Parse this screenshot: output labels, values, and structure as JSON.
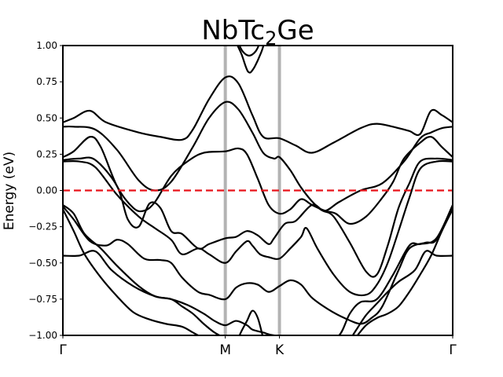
{
  "chart_data": {
    "type": "line",
    "title": {
      "main": "NbTc",
      "sub": "2",
      "tail": "Ge"
    },
    "xlabel": "",
    "ylabel": "Energy (eV)",
    "xlim": [
      0,
      3.6
    ],
    "ylim": [
      -1.0,
      1.0
    ],
    "yticks": [
      1.0,
      0.75,
      0.5,
      0.25,
      0.0,
      -0.25,
      -0.5,
      -0.75,
      -1.0
    ],
    "ytick_labels": [
      "1.00",
      "0.75",
      "0.50",
      "0.25",
      "0.00",
      "−0.25",
      "−0.50",
      "−0.75",
      "−1.00"
    ],
    "high_symmetry_points": [
      {
        "label": "Γ",
        "x": 0.0
      },
      {
        "label": "M",
        "x": 1.5
      },
      {
        "label": "K",
        "x": 2.0
      },
      {
        "label": "Γ",
        "x": 3.6
      }
    ],
    "fermi_level": 0.0,
    "fermi_color": "#e8141b",
    "band_color": "#000000",
    "divider_color": "#b3b3b3",
    "grid": false,
    "series": [
      {
        "values": [
          [
            0,
            0.47
          ],
          [
            0.1,
            0.5
          ],
          [
            0.25,
            0.55
          ],
          [
            0.4,
            0.47
          ],
          [
            0.7,
            0.4
          ],
          [
            0.9,
            0.37
          ],
          [
            1.1,
            0.35
          ],
          [
            1.2,
            0.42
          ],
          [
            1.35,
            0.63
          ],
          [
            1.5,
            0.78
          ],
          [
            1.62,
            0.74
          ],
          [
            1.75,
            0.52
          ],
          [
            1.85,
            0.37
          ],
          [
            2.0,
            0.36
          ],
          [
            2.15,
            0.31
          ],
          [
            2.3,
            0.26
          ],
          [
            2.5,
            0.33
          ],
          [
            2.75,
            0.43
          ],
          [
            2.9,
            0.46
          ],
          [
            3.1,
            0.43
          ],
          [
            3.2,
            0.41
          ],
          [
            3.3,
            0.39
          ],
          [
            3.4,
            0.55
          ],
          [
            3.5,
            0.52
          ],
          [
            3.6,
            0.47
          ]
        ]
      },
      {
        "values": [
          [
            0,
            0.44
          ],
          [
            0.1,
            0.44
          ],
          [
            0.3,
            0.42
          ],
          [
            0.5,
            0.28
          ],
          [
            0.7,
            0.07
          ],
          [
            0.85,
            0.0
          ],
          [
            1.0,
            0.06
          ],
          [
            1.2,
            0.3
          ],
          [
            1.35,
            0.5
          ],
          [
            1.5,
            0.61
          ],
          [
            1.62,
            0.56
          ],
          [
            1.75,
            0.4
          ],
          [
            1.85,
            0.26
          ],
          [
            1.95,
            0.22
          ],
          [
            2.0,
            0.23
          ],
          [
            2.1,
            0.14
          ],
          [
            2.2,
            0.02
          ],
          [
            2.32,
            -0.09
          ],
          [
            2.42,
            -0.14
          ],
          [
            2.55,
            -0.08
          ],
          [
            2.75,
            0.0
          ],
          [
            2.95,
            0.05
          ],
          [
            3.15,
            0.2
          ],
          [
            3.3,
            0.36
          ],
          [
            3.4,
            0.4
          ],
          [
            3.5,
            0.43
          ],
          [
            3.6,
            0.44
          ]
        ]
      },
      {
        "values": [
          [
            0,
            0.23
          ],
          [
            0.1,
            0.27
          ],
          [
            0.25,
            0.37
          ],
          [
            0.35,
            0.3
          ],
          [
            0.5,
            0.03
          ],
          [
            0.65,
            -0.12
          ],
          [
            0.75,
            -0.14
          ],
          [
            0.85,
            -0.08
          ],
          [
            1.0,
            0.1
          ],
          [
            1.15,
            0.2
          ],
          [
            1.3,
            0.26
          ],
          [
            1.5,
            0.27
          ],
          [
            1.62,
            0.29
          ],
          [
            1.7,
            0.25
          ],
          [
            1.8,
            0.08
          ],
          [
            1.9,
            -0.1
          ],
          [
            2.0,
            -0.16
          ],
          [
            2.1,
            -0.13
          ],
          [
            2.2,
            -0.06
          ],
          [
            2.3,
            -0.1
          ],
          [
            2.42,
            -0.14
          ],
          [
            2.52,
            -0.16
          ],
          [
            2.65,
            -0.23
          ],
          [
            2.8,
            -0.18
          ],
          [
            2.95,
            -0.05
          ],
          [
            3.05,
            0.06
          ],
          [
            3.15,
            0.22
          ],
          [
            3.3,
            0.33
          ],
          [
            3.4,
            0.37
          ],
          [
            3.5,
            0.3
          ],
          [
            3.6,
            0.23
          ]
        ]
      },
      {
        "values": [
          [
            0,
            0.21
          ],
          [
            0.15,
            0.22
          ],
          [
            0.3,
            0.21
          ],
          [
            0.5,
            0.03
          ],
          [
            0.6,
            -0.2
          ],
          [
            0.7,
            -0.25
          ],
          [
            0.8,
            -0.09
          ],
          [
            0.9,
            -0.12
          ],
          [
            1.0,
            -0.28
          ],
          [
            1.1,
            -0.3
          ],
          [
            1.25,
            -0.4
          ],
          [
            1.35,
            -0.37
          ],
          [
            1.5,
            -0.33
          ],
          [
            1.6,
            -0.32
          ],
          [
            1.7,
            -0.28
          ],
          [
            1.8,
            -0.31
          ],
          [
            1.9,
            -0.37
          ],
          [
            1.95,
            -0.33
          ],
          [
            2.05,
            -0.23
          ],
          [
            2.15,
            -0.21
          ],
          [
            2.3,
            -0.1
          ],
          [
            2.4,
            -0.14
          ],
          [
            2.5,
            -0.18
          ],
          [
            2.65,
            -0.36
          ],
          [
            2.8,
            -0.56
          ],
          [
            2.9,
            -0.58
          ],
          [
            3.0,
            -0.38
          ],
          [
            3.1,
            -0.12
          ],
          [
            3.2,
            0.05
          ],
          [
            3.3,
            0.2
          ],
          [
            3.45,
            0.22
          ],
          [
            3.6,
            0.21
          ]
        ]
      },
      {
        "values": [
          [
            0,
            0.2
          ],
          [
            0.15,
            0.2
          ],
          [
            0.3,
            0.16
          ],
          [
            0.5,
            -0.03
          ],
          [
            0.7,
            -0.18
          ],
          [
            0.85,
            -0.26
          ],
          [
            1.0,
            -0.34
          ],
          [
            1.1,
            -0.44
          ],
          [
            1.25,
            -0.4
          ],
          [
            1.35,
            -0.44
          ],
          [
            1.5,
            -0.5
          ],
          [
            1.6,
            -0.42
          ],
          [
            1.7,
            -0.35
          ],
          [
            1.75,
            -0.38
          ],
          [
            1.82,
            -0.44
          ],
          [
            1.9,
            -0.46
          ],
          [
            2.0,
            -0.47
          ],
          [
            2.1,
            -0.4
          ],
          [
            2.2,
            -0.32
          ],
          [
            2.25,
            -0.26
          ],
          [
            2.35,
            -0.4
          ],
          [
            2.5,
            -0.58
          ],
          [
            2.65,
            -0.7
          ],
          [
            2.8,
            -0.72
          ],
          [
            2.9,
            -0.65
          ],
          [
            3.0,
            -0.5
          ],
          [
            3.1,
            -0.28
          ],
          [
            3.2,
            -0.05
          ],
          [
            3.3,
            0.15
          ],
          [
            3.45,
            0.2
          ],
          [
            3.6,
            0.2
          ]
        ]
      },
      {
        "values": [
          [
            0,
            -0.11
          ],
          [
            0.1,
            -0.2
          ],
          [
            0.25,
            -0.35
          ],
          [
            0.4,
            -0.38
          ],
          [
            0.5,
            -0.34
          ],
          [
            0.6,
            -0.37
          ],
          [
            0.75,
            -0.47
          ],
          [
            0.9,
            -0.48
          ],
          [
            1.0,
            -0.5
          ],
          [
            1.1,
            -0.6
          ],
          [
            1.25,
            -0.7
          ],
          [
            1.35,
            -0.72
          ],
          [
            1.5,
            -0.75
          ],
          [
            1.6,
            -0.67
          ],
          [
            1.7,
            -0.64
          ],
          [
            1.8,
            -0.65
          ],
          [
            1.9,
            -0.7
          ],
          [
            2.0,
            -0.66
          ],
          [
            2.1,
            -0.62
          ],
          [
            2.2,
            -0.65
          ],
          [
            2.3,
            -0.74
          ],
          [
            2.45,
            -0.82
          ],
          [
            2.6,
            -0.88
          ],
          [
            2.75,
            -0.92
          ],
          [
            2.85,
            -0.88
          ],
          [
            2.95,
            -0.8
          ],
          [
            3.1,
            -0.55
          ],
          [
            3.2,
            -0.4
          ],
          [
            3.35,
            -0.36
          ],
          [
            3.45,
            -0.34
          ],
          [
            3.6,
            -0.12
          ]
        ]
      },
      {
        "values": [
          [
            0,
            -0.1
          ],
          [
            0.1,
            -0.16
          ],
          [
            0.2,
            -0.3
          ],
          [
            0.35,
            -0.4
          ],
          [
            0.5,
            -0.52
          ],
          [
            0.7,
            -0.66
          ],
          [
            0.85,
            -0.73
          ],
          [
            1.0,
            -0.75
          ],
          [
            1.15,
            -0.79
          ],
          [
            1.3,
            -0.85
          ],
          [
            1.4,
            -0.9
          ],
          [
            1.5,
            -0.93
          ],
          [
            1.6,
            -0.9
          ],
          [
            1.7,
            -0.93
          ],
          [
            1.75,
            -0.96
          ],
          [
            1.85,
            -0.98
          ],
          [
            1.95,
            -1.0
          ],
          [
            2.2,
            -1.01
          ],
          [
            2.4,
            -1.02
          ],
          [
            2.55,
            -1.0
          ],
          [
            2.65,
            -0.85
          ],
          [
            2.75,
            -0.77
          ],
          [
            2.9,
            -0.75
          ],
          [
            3.05,
            -0.58
          ],
          [
            3.2,
            -0.38
          ],
          [
            3.3,
            -0.37
          ],
          [
            3.45,
            -0.33
          ],
          [
            3.6,
            -0.1
          ]
        ]
      },
      {
        "values": [
          [
            0,
            -0.45
          ],
          [
            0.15,
            -0.45
          ],
          [
            0.3,
            -0.42
          ],
          [
            0.45,
            -0.55
          ],
          [
            0.65,
            -0.66
          ],
          [
            0.85,
            -0.73
          ],
          [
            1.0,
            -0.75
          ],
          [
            1.1,
            -0.8
          ],
          [
            1.2,
            -0.85
          ],
          [
            1.3,
            -0.92
          ],
          [
            1.4,
            -0.98
          ],
          [
            1.5,
            -1.02
          ]
        ]
      },
      {
        "values": [
          [
            0,
            -0.13
          ],
          [
            0.1,
            -0.28
          ],
          [
            0.2,
            -0.44
          ],
          [
            0.35,
            -0.6
          ],
          [
            0.5,
            -0.73
          ],
          [
            0.65,
            -0.84
          ],
          [
            0.8,
            -0.89
          ],
          [
            0.95,
            -0.92
          ],
          [
            1.1,
            -0.94
          ],
          [
            1.2,
            -0.98
          ],
          [
            1.3,
            -1.02
          ]
        ]
      },
      {
        "values": [
          [
            3.6,
            -0.45
          ],
          [
            3.45,
            -0.45
          ],
          [
            3.35,
            -0.42
          ],
          [
            3.25,
            -0.55
          ],
          [
            3.1,
            -0.63
          ],
          [
            3.0,
            -0.7
          ],
          [
            2.9,
            -0.78
          ],
          [
            2.8,
            -0.86
          ],
          [
            2.72,
            -0.95
          ],
          [
            2.66,
            -1.02
          ]
        ]
      },
      {
        "values": [
          [
            3.6,
            -0.13
          ],
          [
            3.5,
            -0.28
          ],
          [
            3.4,
            -0.45
          ],
          [
            3.3,
            -0.58
          ],
          [
            3.2,
            -0.7
          ],
          [
            3.1,
            -0.8
          ],
          [
            3.0,
            -0.85
          ],
          [
            2.9,
            -0.88
          ],
          [
            2.8,
            -0.93
          ],
          [
            2.7,
            -1.02
          ]
        ]
      },
      {
        "values": [
          [
            1.62,
            -1.02
          ],
          [
            1.65,
            -0.97
          ],
          [
            1.7,
            -0.9
          ],
          [
            1.75,
            -0.83
          ],
          [
            1.8,
            -0.88
          ],
          [
            1.85,
            -1.02
          ]
        ]
      },
      {
        "values": [
          [
            1.62,
            1.02
          ],
          [
            1.66,
            0.96
          ],
          [
            1.72,
            0.93
          ],
          [
            1.78,
            0.96
          ],
          [
            1.82,
            1.02
          ]
        ]
      },
      {
        "values": [
          [
            1.6,
            1.02
          ],
          [
            1.65,
            0.94
          ],
          [
            1.71,
            0.82
          ],
          [
            1.76,
            0.84
          ],
          [
            1.83,
            0.95
          ],
          [
            1.86,
            1.02
          ]
        ]
      }
    ]
  }
}
